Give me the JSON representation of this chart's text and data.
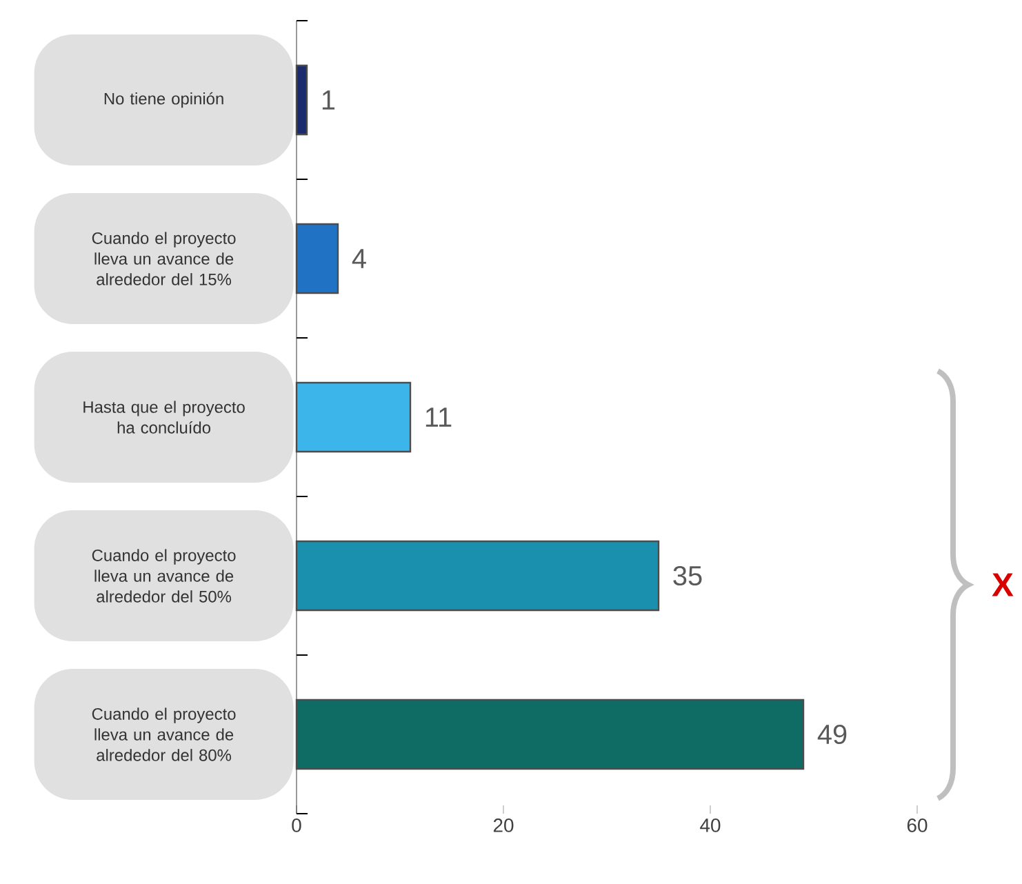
{
  "chart_data": {
    "type": "bar",
    "orientation": "horizontal",
    "categories": [
      "No tiene opinión",
      "Cuando el proyecto lleva un avance de alrededor del 15%",
      "Hasta que el proyecto ha concluído",
      "Cuando el proyecto lleva un avance de alrededor del  50%",
      "Cuando el proyecto lleva un avance de alrededor del  80%"
    ],
    "values": [
      1,
      4,
      11,
      35,
      49
    ],
    "colors": [
      "#1c2a6e",
      "#1f72c4",
      "#3cb6ea",
      "#1b8fae",
      "#0f6c64"
    ],
    "xlim": [
      0,
      60
    ],
    "xticks": [
      0,
      20,
      40,
      60
    ],
    "data_labels": true,
    "annotations": [
      "X"
    ]
  }
}
